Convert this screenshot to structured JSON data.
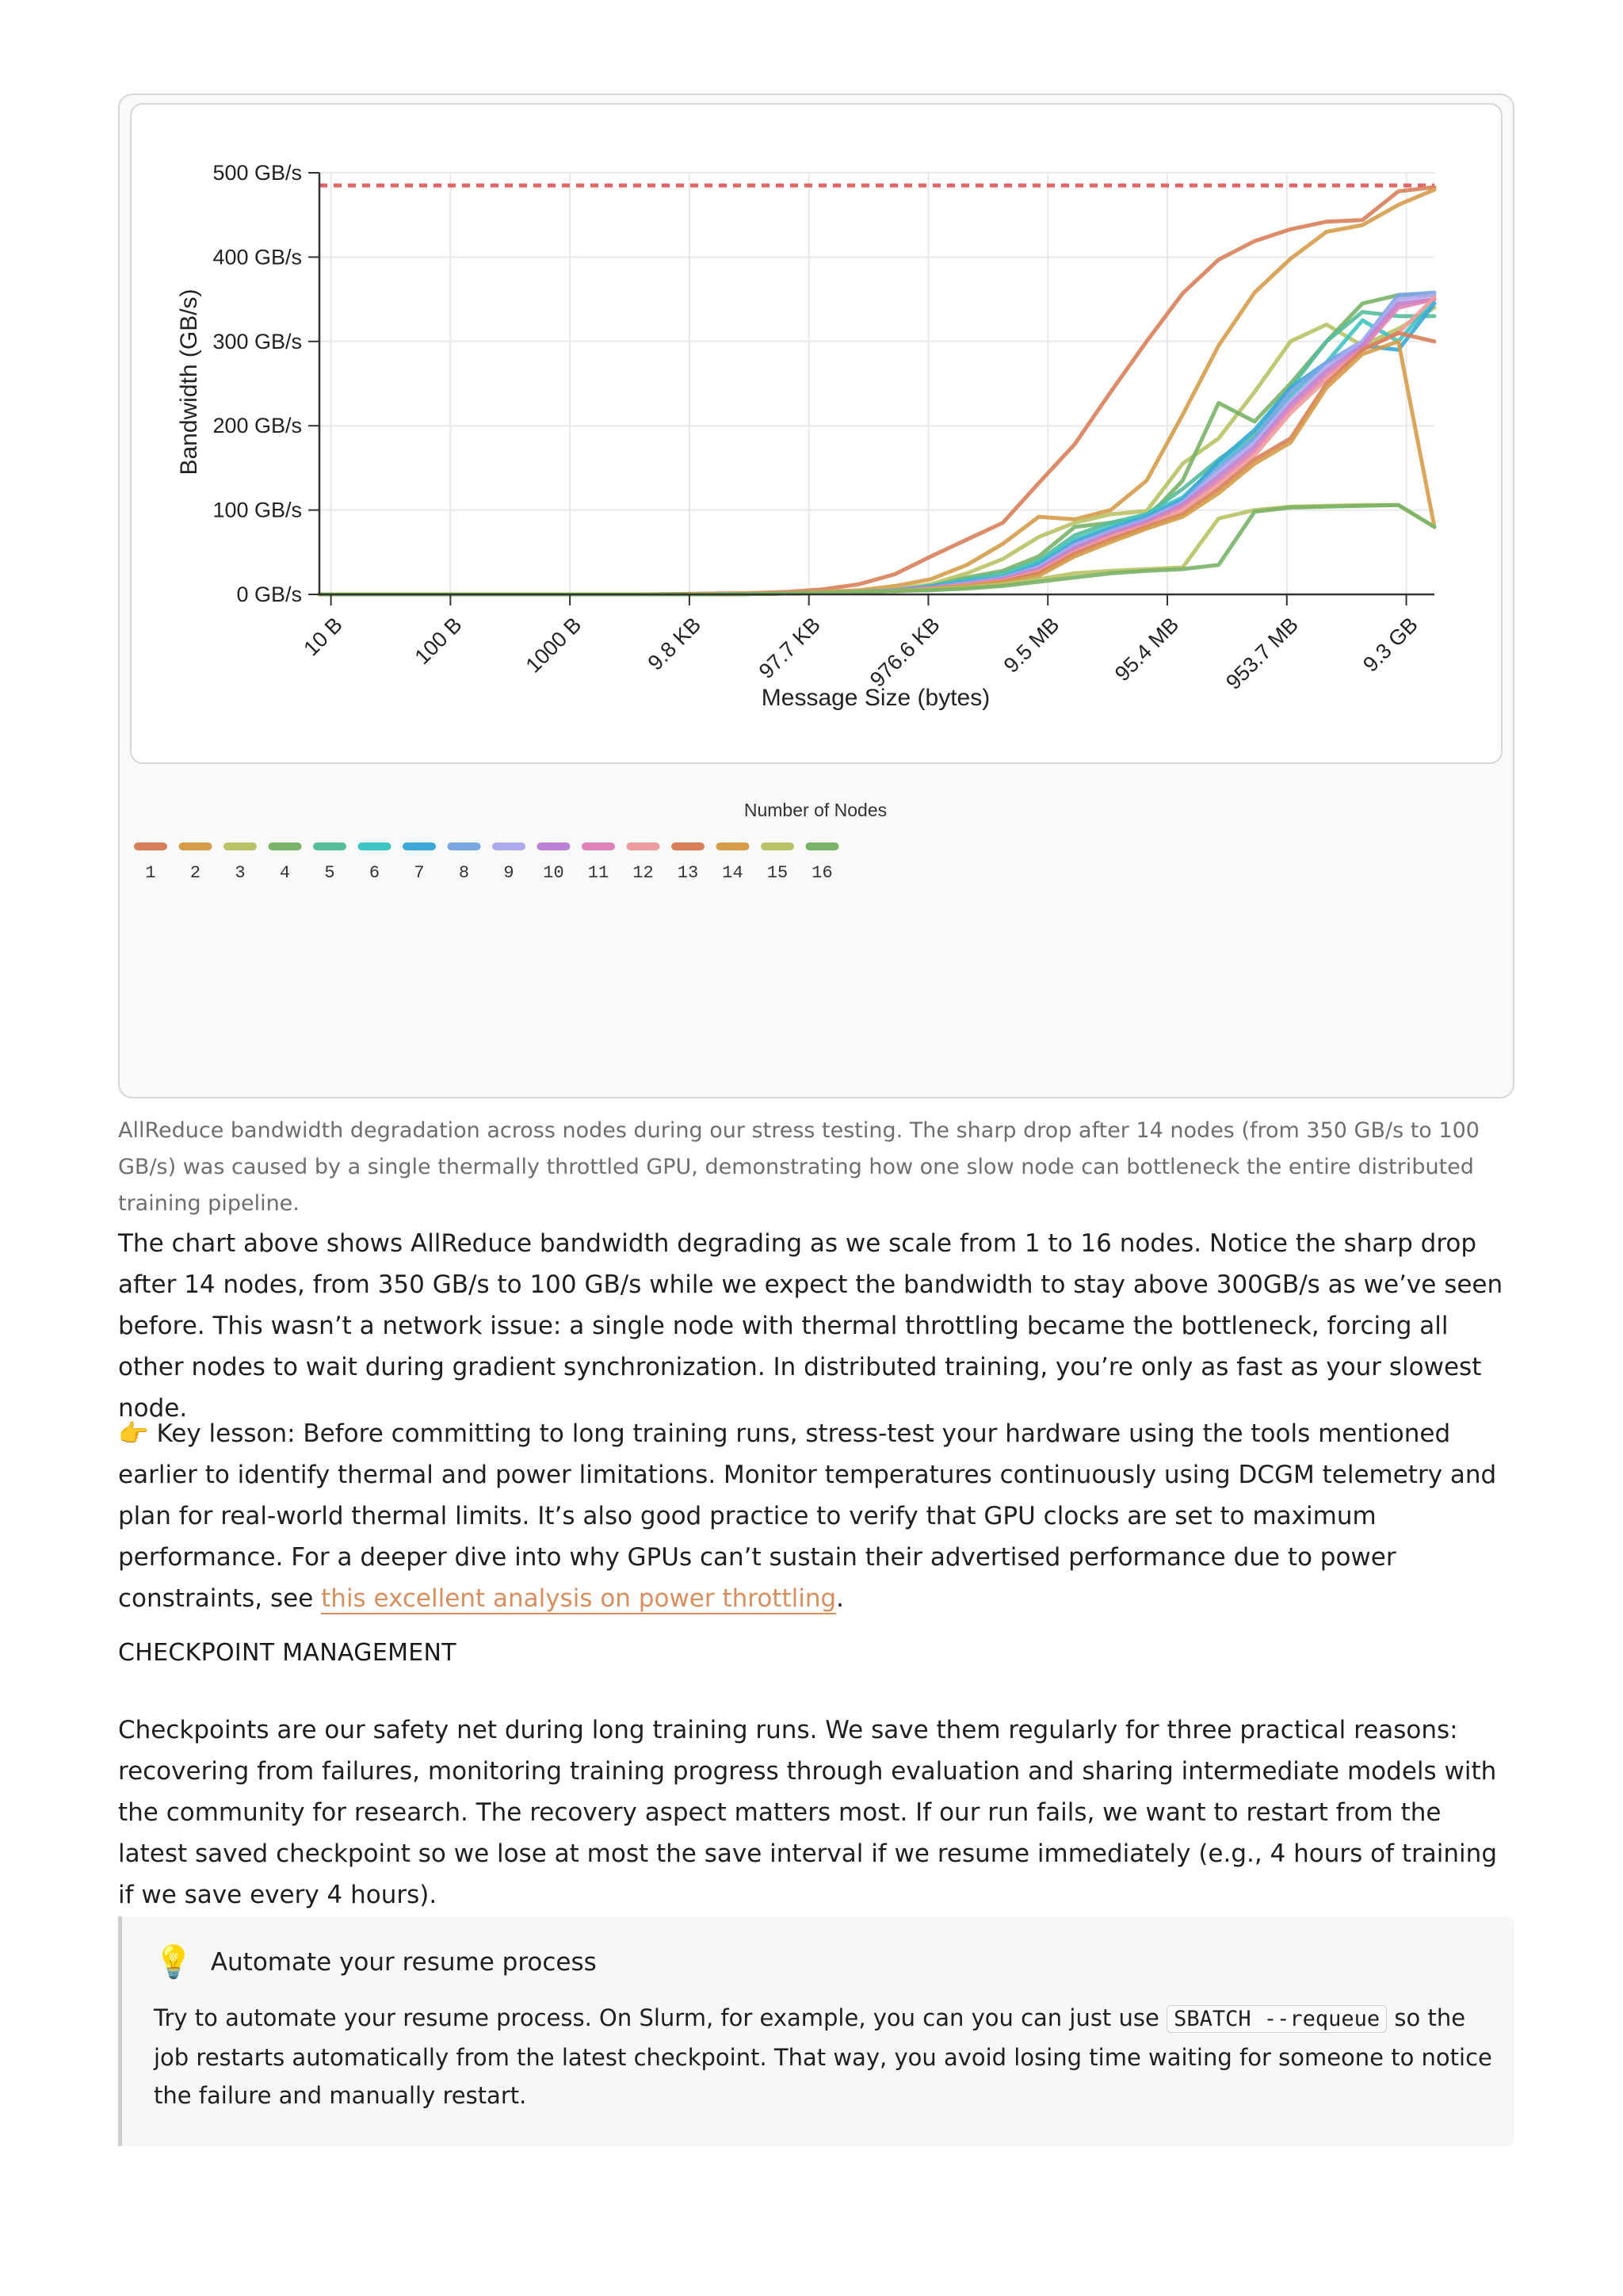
{
  "figure": {
    "caption": "AllReduce bandwidth degradation across nodes during our stress testing. The sharp drop after 14 nodes (from 350 GB/s to 100 GB/s) was caused by a single thermally throttled GPU, demonstrating how one slow node can bottleneck the entire distributed training pipeline."
  },
  "chart_data": {
    "type": "line",
    "title": "",
    "xlabel": "Message Size (bytes)",
    "ylabel": "Bandwidth (GB/s)",
    "x_scale": "log2",
    "x_ticks": [
      "10 B",
      "100 B",
      "1000 B",
      "9.8 KB",
      "97.7 KB",
      "976.6 KB",
      "9.5 MB",
      "95.4 MB",
      "953.7 MB",
      "9.3 GB"
    ],
    "y_ticks": [
      "0 GB/s",
      "100 GB/s",
      "200 GB/s",
      "300 GB/s",
      "400 GB/s",
      "500 GB/s"
    ],
    "ylim": [
      0,
      500
    ],
    "grid": true,
    "reference_line": {
      "value": 485,
      "color": "#e06666",
      "style": "dashed"
    },
    "legend": {
      "title": "Number of Nodes",
      "placement": "bottom-left"
    },
    "x_bytes": [
      8,
      16,
      32,
      64,
      128,
      256,
      512,
      1024,
      2048,
      4096,
      8192,
      16384,
      32768,
      65536,
      131072,
      262144,
      524288,
      1048576,
      2097152,
      4194304,
      8388608,
      16777216,
      33554432,
      67108864,
      134217728,
      268435456,
      536870912,
      1073741824,
      2147483648,
      4294967296,
      8589934592,
      17179869184
    ],
    "series": [
      {
        "name": "1",
        "color": "#d9805a",
        "values": [
          0,
          0,
          0,
          0,
          0,
          0,
          0,
          0,
          0,
          0,
          0.5,
          1,
          1.5,
          3,
          6,
          12,
          24,
          45,
          65,
          85,
          132,
          178,
          240,
          300,
          357,
          397,
          419,
          433,
          442,
          444,
          478,
          483
        ]
      },
      {
        "name": "2",
        "color": "#d59c4a",
        "values": [
          0,
          0,
          0,
          0,
          0,
          0,
          0,
          0,
          0,
          0,
          0,
          0.5,
          1,
          1.5,
          3,
          5,
          10,
          18,
          35,
          60,
          92,
          89,
          100,
          135,
          213,
          295,
          358,
          398,
          430,
          438,
          462,
          480
        ]
      },
      {
        "name": "3",
        "color": "#b9c264",
        "values": [
          0,
          0,
          0,
          0,
          0,
          0,
          0,
          0,
          0,
          0,
          0,
          0,
          0.5,
          1,
          2,
          3,
          6,
          12,
          25,
          42,
          68,
          85,
          95,
          99,
          155,
          185,
          240,
          300,
          320,
          295,
          315,
          340
        ]
      },
      {
        "name": "4",
        "color": "#79b367",
        "values": [
          0,
          0,
          0,
          0,
          0,
          0,
          0,
          0,
          0,
          0,
          0,
          0,
          0.5,
          1,
          2,
          3,
          5,
          10,
          20,
          28,
          45,
          80,
          85,
          90,
          135,
          227,
          205,
          250,
          300,
          345,
          355,
          355
        ]
      },
      {
        "name": "5",
        "color": "#55bd9c",
        "values": [
          0,
          0,
          0,
          0,
          0,
          0,
          0,
          0,
          0,
          0,
          0,
          0,
          0.5,
          1,
          2,
          3,
          5,
          10,
          18,
          25,
          40,
          70,
          85,
          95,
          125,
          160,
          190,
          245,
          300,
          335,
          330,
          330
        ]
      },
      {
        "name": "6",
        "color": "#3fc4c4",
        "values": [
          0,
          0,
          0,
          0,
          0,
          0,
          0,
          0,
          0,
          0,
          0,
          0,
          0.5,
          1,
          2,
          3,
          5,
          10,
          16,
          22,
          38,
          65,
          80,
          95,
          115,
          155,
          185,
          235,
          275,
          325,
          300,
          350
        ]
      },
      {
        "name": "7",
        "color": "#3aa8d8",
        "values": [
          0,
          0,
          0,
          0,
          0,
          0,
          0,
          0,
          0,
          0,
          0,
          0,
          0.5,
          1,
          2,
          3,
          5,
          9,
          15,
          20,
          35,
          62,
          78,
          92,
          112,
          158,
          195,
          245,
          275,
          295,
          290,
          345
        ]
      },
      {
        "name": "8",
        "color": "#7aa6e6",
        "values": [
          0,
          0,
          0,
          0,
          0,
          0,
          0,
          0,
          0,
          0,
          0,
          0,
          0.5,
          1,
          2,
          3,
          5,
          8,
          14,
          20,
          33,
          60,
          76,
          90,
          110,
          150,
          185,
          240,
          275,
          300,
          355,
          358
        ]
      },
      {
        "name": "9",
        "color": "#aeaaee",
        "values": [
          0,
          0,
          0,
          0,
          0,
          0,
          0,
          0,
          0,
          0,
          0,
          0,
          0.5,
          1,
          2,
          3,
          5,
          8,
          13,
          19,
          32,
          58,
          74,
          88,
          108,
          145,
          180,
          230,
          270,
          300,
          350,
          355
        ]
      },
      {
        "name": "10",
        "color": "#bb82d4",
        "values": [
          0,
          0,
          0,
          0,
          0,
          0,
          0,
          0,
          0,
          0,
          0,
          0,
          0.5,
          1,
          2,
          3,
          5,
          8,
          12,
          18,
          30,
          55,
          72,
          86,
          106,
          140,
          175,
          225,
          265,
          295,
          345,
          350
        ]
      },
      {
        "name": "11",
        "color": "#de82b8",
        "values": [
          0,
          0,
          0,
          0,
          0,
          0,
          0,
          0,
          0,
          0,
          0,
          0,
          0.5,
          1,
          2,
          3,
          4,
          7,
          11,
          17,
          28,
          52,
          70,
          84,
          104,
          135,
          170,
          220,
          260,
          292,
          340,
          350
        ]
      },
      {
        "name": "12",
        "color": "#ef9c9c",
        "values": [
          0,
          0,
          0,
          0,
          0,
          0,
          0,
          0,
          0,
          0,
          0,
          0,
          0.5,
          1,
          2,
          3,
          4,
          7,
          11,
          16,
          27,
          50,
          68,
          82,
          100,
          130,
          165,
          215,
          255,
          290,
          310,
          352
        ]
      },
      {
        "name": "13",
        "color": "#d9805a",
        "values": [
          0,
          0,
          0,
          0,
          0,
          0,
          0,
          0,
          0,
          0,
          0,
          0,
          0.5,
          1,
          2,
          3,
          4,
          7,
          10,
          15,
          25,
          48,
          65,
          80,
          95,
          125,
          160,
          185,
          250,
          290,
          310,
          300
        ]
      },
      {
        "name": "14",
        "color": "#d59c4a",
        "values": [
          0,
          0,
          0,
          0,
          0,
          0,
          0,
          0,
          0,
          0,
          0,
          0,
          0.5,
          1,
          2,
          3,
          4,
          6,
          10,
          14,
          22,
          45,
          62,
          78,
          92,
          120,
          155,
          180,
          245,
          285,
          300,
          80
        ]
      },
      {
        "name": "15",
        "color": "#b9c264",
        "values": [
          0,
          0,
          0,
          0,
          0,
          0,
          0,
          0,
          0,
          0,
          0,
          0,
          0.5,
          1,
          2,
          3,
          4,
          6,
          8,
          12,
          18,
          25,
          28,
          30,
          32,
          90,
          100,
          104,
          105,
          106,
          106,
          80
        ]
      },
      {
        "name": "16",
        "color": "#79b367",
        "values": [
          0,
          0,
          0,
          0,
          0,
          0,
          0,
          0,
          0,
          0,
          0,
          0,
          0.5,
          1,
          2,
          3,
          4,
          5,
          7,
          10,
          15,
          20,
          25,
          28,
          30,
          35,
          98,
          103,
          104,
          105,
          106,
          80
        ]
      }
    ]
  },
  "body": {
    "para1": "The chart above shows AllReduce bandwidth degrading as we scale from 1 to 16 nodes. Notice the sharp drop after 14 nodes, from 350 GB/s to 100 GB/s while we expect the bandwidth to stay above 300GB/s as we’ve seen before. This wasn’t a network issue: a single node with thermal throttling became the bottleneck, forcing all other nodes to wait during gradient synchronization. In distributed training, you’re only as fast as your slowest node.",
    "para2_emoji": "👉",
    "para2_text": " Key lesson: Before committing to long training runs, stress-test your hardware using the tools mentioned earlier to identify thermal and power limitations. Monitor temperatures continuously using DCGM telemetry and plan for real-world thermal limits. It’s also good practice to verify that GPU clocks are set to maximum performance. For a deeper dive into why GPUs can’t sustain their advertised performance due to power constraints, see ",
    "para2_link": "this excellent analysis on power throttling",
    "para2_end": ".",
    "heading": "CHECKPOINT MANAGEMENT",
    "para3": "Checkpoints are our safety net during long training runs. We save them regularly for three practical reasons: recovering from failures, monitoring training progress through evaluation and sharing intermediate models with the community for research. The recovery aspect matters most. If our run fails, we want to restart from the latest saved checkpoint so we lose at most the save interval if we resume immediately (e.g., 4 hours of training if we save every 4 hours)."
  },
  "callout": {
    "icon": "lightbulb-icon",
    "title": "Automate your resume process",
    "text_before": "Try to automate your resume process. On Slurm, for example, you can you can just use ",
    "code": "SBATCH --requeue",
    "text_after": " so the job restarts automatically from the latest checkpoint. That way, you avoid losing time waiting for someone to notice the failure and manually restart."
  }
}
